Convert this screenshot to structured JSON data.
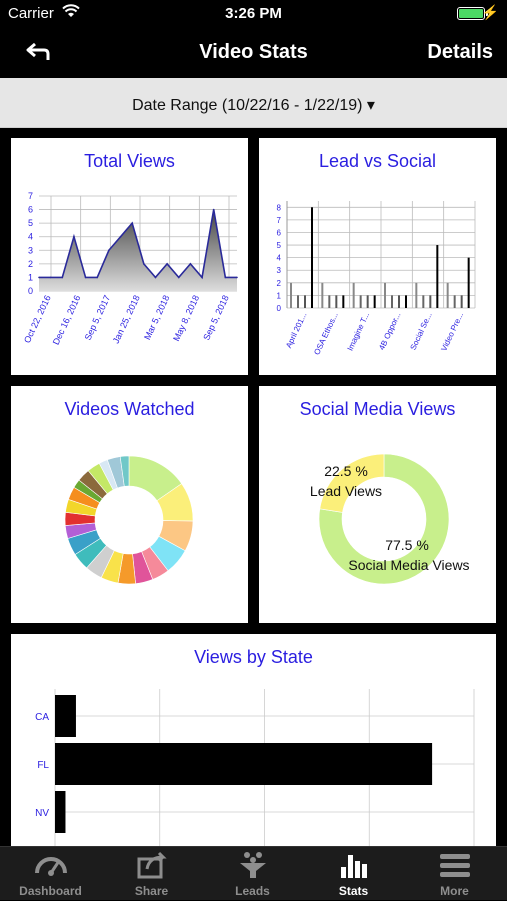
{
  "status_bar": {
    "carrier": "Carrier",
    "time": "3:26 PM"
  },
  "nav": {
    "title": "Video Stats",
    "details_label": "Details"
  },
  "date_range": {
    "label": "Date Range (10/22/16 - 1/22/19) ▾"
  },
  "cards": {
    "total_views": {
      "title": "Total Views"
    },
    "lead_vs_social": {
      "title": "Lead vs Social"
    },
    "videos_watched": {
      "title": "Videos Watched"
    },
    "social_media_views": {
      "title": "Social Media Views"
    },
    "views_by_state": {
      "title": "Views by State"
    }
  },
  "tabs": [
    {
      "label": "Dashboard",
      "icon": "gauge-icon",
      "active": false
    },
    {
      "label": "Share",
      "icon": "share-icon",
      "active": false
    },
    {
      "label": "Leads",
      "icon": "funnel-icon",
      "active": false
    },
    {
      "label": "Stats",
      "icon": "bar-chart-icon",
      "active": true
    },
    {
      "label": "More",
      "icon": "menu-icon",
      "active": false
    }
  ],
  "colors": {
    "accent_title": "#2a1ee0",
    "axis_label": "#2a1ee0"
  },
  "chart_data": [
    {
      "type": "area",
      "title": "Total Views",
      "x_tick_labels": [
        "Oct 22, 2016",
        "Dec 16, 2016",
        "Sep 5, 2017",
        "Jan 25, 2018",
        "Mar 5, 2018",
        "May 8, 2018",
        "Sep 5, 2018"
      ],
      "y_tick_labels": [
        "0",
        "1",
        "2",
        "3",
        "4",
        "5",
        "6",
        "7"
      ],
      "ylim": [
        0,
        7
      ],
      "values": [
        1,
        1,
        1,
        4,
        1,
        1,
        3,
        4,
        5,
        2,
        1,
        2,
        1,
        2,
        1,
        6,
        1,
        1
      ],
      "grid": true
    },
    {
      "type": "bar",
      "title": "Lead vs Social",
      "categories": [
        "April 201...",
        "OSA Ethos...",
        "Imagine T...",
        "4B Oppor...",
        "Social Se...",
        "Video Pre..."
      ],
      "y_tick_labels": [
        "0",
        "1",
        "2",
        "3",
        "4",
        "5",
        "6",
        "7",
        "8"
      ],
      "ylim": [
        0,
        8.5
      ],
      "series": [
        {
          "values": [
            2,
            2,
            2,
            2,
            2,
            2
          ]
        },
        {
          "values": [
            1,
            1,
            1,
            1,
            1,
            1
          ]
        },
        {
          "values": [
            1,
            1,
            1,
            1,
            1,
            1
          ]
        },
        {
          "values": [
            8,
            1,
            1,
            1,
            5,
            4
          ]
        }
      ],
      "grid": true
    },
    {
      "type": "pie",
      "title": "Videos Watched",
      "donut": true,
      "slices": [
        {
          "value": 14,
          "color": "#c8ef8c"
        },
        {
          "value": 9,
          "color": "#fbef7a"
        },
        {
          "value": 7,
          "color": "#fcc784"
        },
        {
          "value": 6,
          "color": "#7fe3f6"
        },
        {
          "value": 4,
          "color": "#f58a9a"
        },
        {
          "value": 4,
          "color": "#e0549a"
        },
        {
          "value": 4,
          "color": "#f59a2a"
        },
        {
          "value": 4,
          "color": "#f9e24a"
        },
        {
          "value": 4,
          "color": "#cfcfcf"
        },
        {
          "value": 4,
          "color": "#3fbcbc"
        },
        {
          "value": 4,
          "color": "#3aa0c8"
        },
        {
          "value": 3,
          "color": "#b35fd6"
        },
        {
          "value": 3,
          "color": "#e23030"
        },
        {
          "value": 3,
          "color": "#f2d62a"
        },
        {
          "value": 3,
          "color": "#f58e1e"
        },
        {
          "value": 2,
          "color": "#6aa832"
        },
        {
          "value": 3,
          "color": "#8b6a3c"
        },
        {
          "value": 3,
          "color": "#c4e866"
        },
        {
          "value": 2,
          "color": "#d8e8f4"
        },
        {
          "value": 3,
          "color": "#a0c8d8"
        },
        {
          "value": 2,
          "color": "#70c8c8"
        }
      ]
    },
    {
      "type": "pie",
      "title": "Social Media Views",
      "donut": true,
      "slices": [
        {
          "label": "Social Media Views",
          "value": 77.5,
          "display": "77.5 %",
          "color": "#c8ef8c"
        },
        {
          "label": "Lead Views",
          "value": 22.5,
          "display": "22.5 %",
          "color": "#fbef7a"
        }
      ]
    },
    {
      "type": "bar",
      "orientation": "horizontal",
      "title": "Views by State",
      "categories": [
        "CA",
        "FL",
        "NV"
      ],
      "values": [
        1,
        18,
        0.5
      ],
      "xlim": [
        0,
        20
      ],
      "grid": true
    }
  ]
}
